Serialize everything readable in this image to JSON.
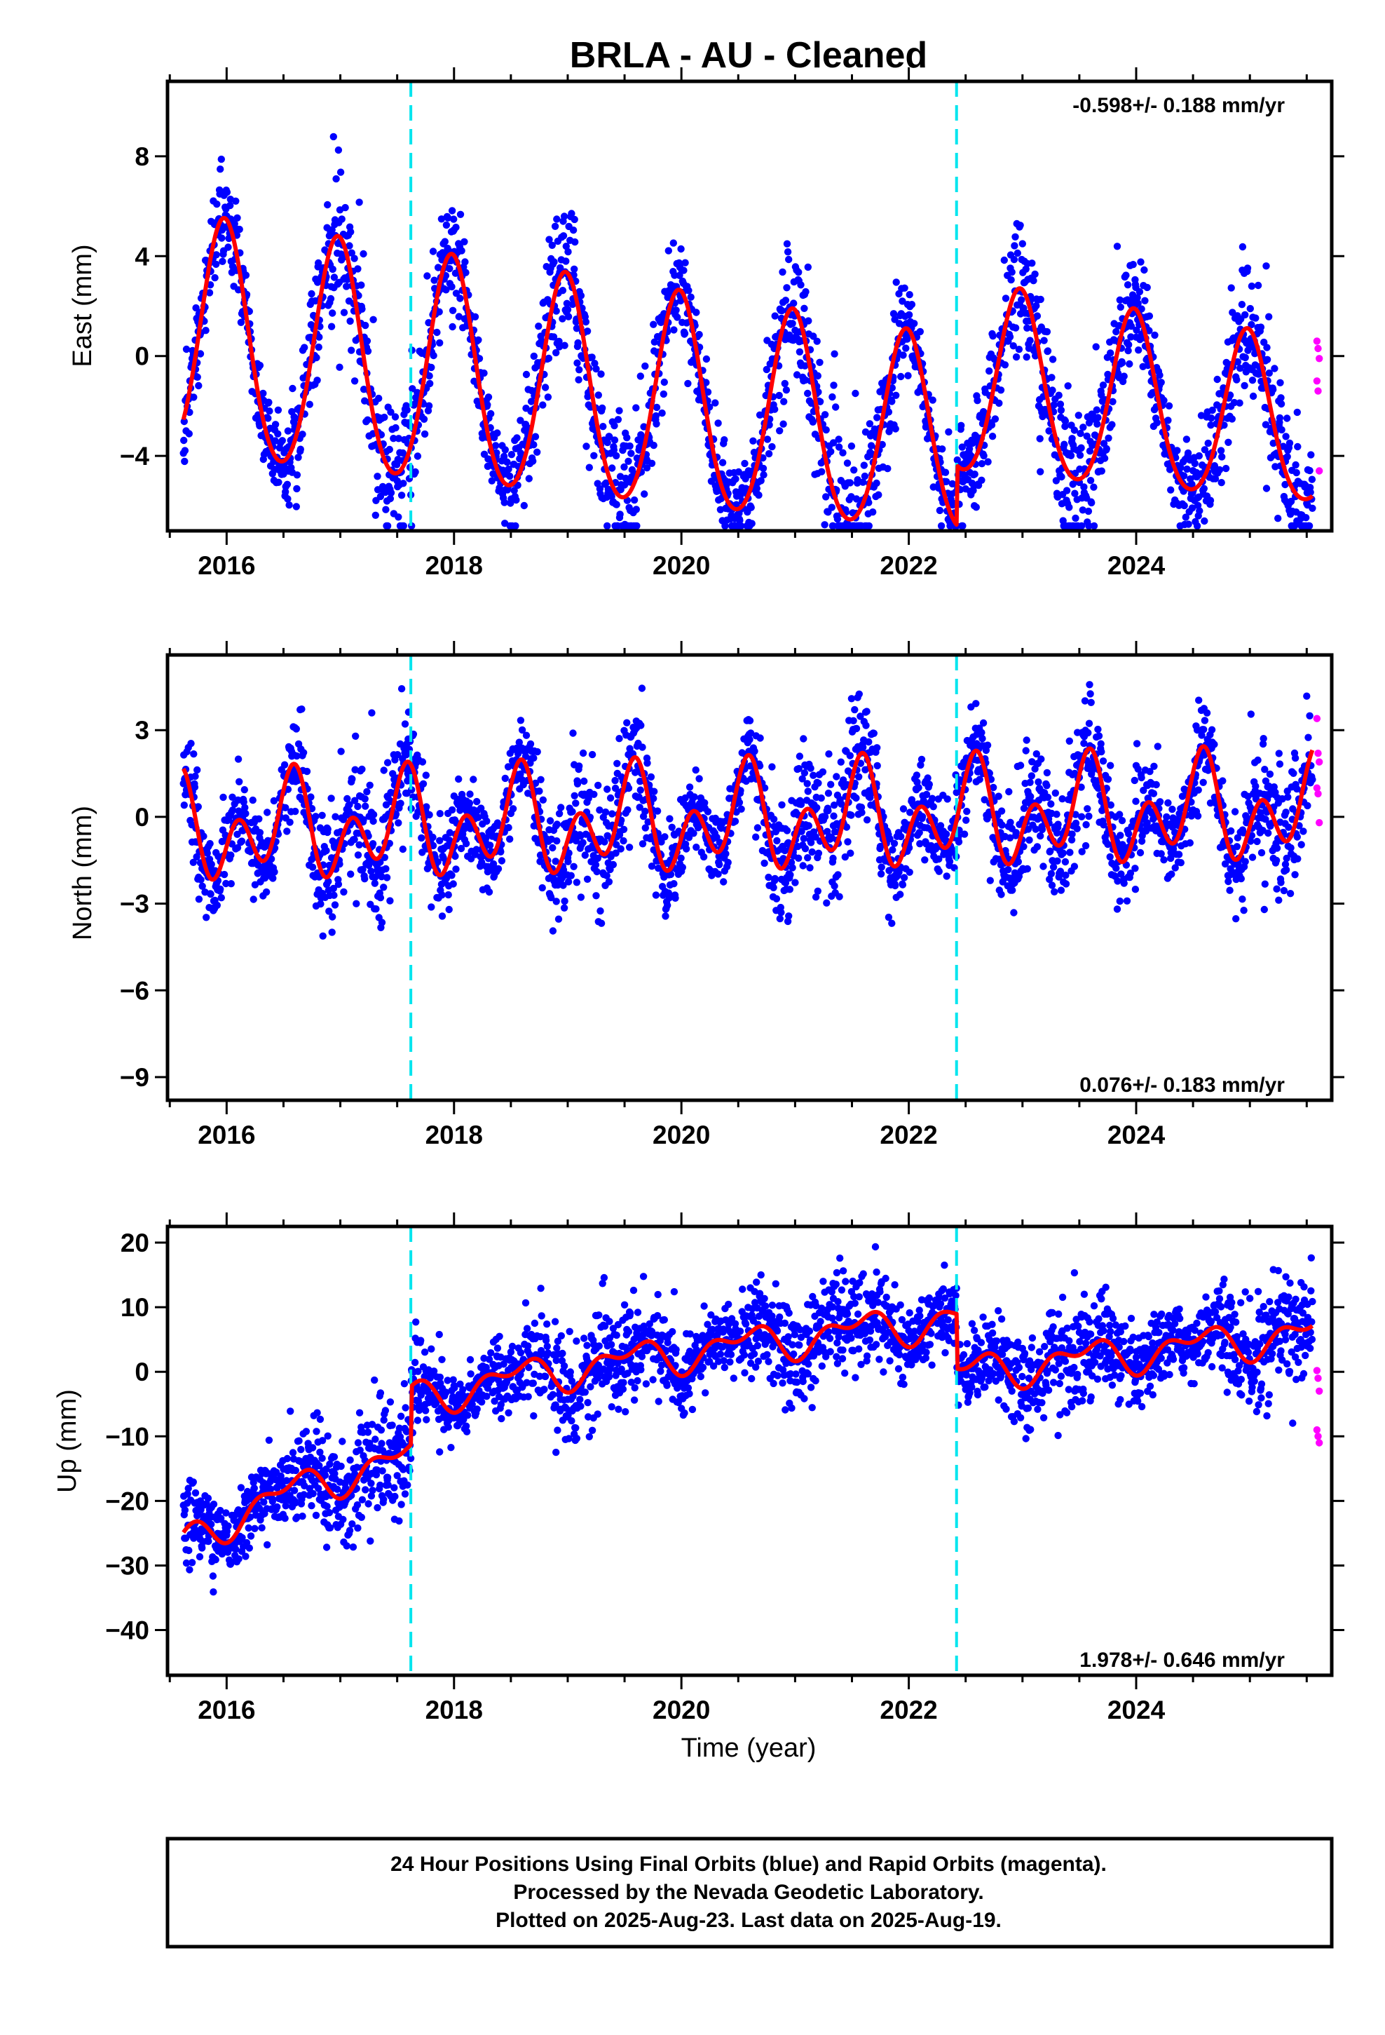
{
  "title": "BRLA  - AU - Cleaned",
  "footer": {
    "lines": [
      "24 Hour Positions Using Final Orbits (blue) and Rapid Orbits (magenta).",
      "Processed by the Nevada Geodetic Laboratory.",
      "Plotted on 2025-Aug-23. Last data on 2025-Aug-19."
    ]
  },
  "colors": {
    "final_orbits": "#0000ff",
    "rapid_orbits": "#ff00ff",
    "model_fit": "#ff0000",
    "equipment_change": "#00e5ee"
  },
  "chart_data": [
    {
      "type": "scatter",
      "panel": "east",
      "ylabel": "East (mm)",
      "xlabel": "",
      "rate_label": "-0.598+/- 0.188 mm/yr",
      "xlim": [
        2015.48,
        2025.72
      ],
      "ylim": [
        -7.0,
        11.0
      ],
      "x_ticks": [
        2016,
        2018,
        2020,
        2022,
        2024
      ],
      "y_ticks": [
        -4,
        0,
        4,
        8
      ],
      "equipment_changes": [
        2017.62,
        2022.42
      ],
      "model": {
        "offset": 0.6,
        "rate": -0.598,
        "annual_amplitude": [
          4.8,
          4.2,
          3.2
        ],
        "annual_peak": 2015.98,
        "semiannual_amplitude": 0.4,
        "semiannual_phase": 0.0,
        "steps": [
          {
            "at": 2022.42,
            "size": 2.4
          }
        ]
      },
      "scatter_sigma": 1.3,
      "rapid_values": [
        0.6,
        0.3,
        -0.1,
        -1.0,
        -1.4,
        -4.6
      ]
    },
    {
      "type": "scatter",
      "panel": "north",
      "ylabel": "North (mm)",
      "xlabel": "",
      "rate_label": "0.076+/- 0.183 mm/yr",
      "xlim": [
        2015.48,
        2025.72
      ],
      "ylim": [
        -9.8,
        5.6
      ],
      "x_ticks": [
        2016,
        2018,
        2020,
        2022,
        2024
      ],
      "y_ticks": [
        -9,
        -6,
        -3,
        0,
        3
      ],
      "equipment_changes": [
        2017.62,
        2022.42
      ],
      "model": {
        "offset": -0.5,
        "rate": 0.076,
        "annual_amplitude": [
          1.0,
          1.0,
          1.0
        ],
        "annual_peak": 2015.55,
        "semiannual_amplitude": 1.3,
        "semiannual_phase": 0.05,
        "steps": []
      },
      "scatter_sigma": 1.0,
      "rapid_values": [
        3.4,
        2.2,
        1.9,
        1.0,
        0.8,
        -0.2
      ]
    },
    {
      "type": "scatter",
      "panel": "up",
      "ylabel": "Up (mm)",
      "xlabel": "Time (year)",
      "rate_label": "1.978+/- 0.646 mm/yr",
      "xlim": [
        2015.48,
        2025.72
      ],
      "ylim": [
        -47.0,
        22.5
      ],
      "x_ticks": [
        2016,
        2018,
        2020,
        2022,
        2024
      ],
      "y_ticks": [
        -40,
        -30,
        -20,
        -10,
        0,
        10,
        20
      ],
      "equipment_changes": [
        2017.62,
        2022.42
      ],
      "model": {
        "offset": -17.0,
        "rate": 1.978,
        "annual_amplitude": [
          2.2,
          2.2,
          2.2
        ],
        "annual_peak": 2016.55,
        "semiannual_amplitude": 1.5,
        "semiannual_phase": 0.2,
        "steps": [
          {
            "at": 2017.62,
            "size": 9.0
          },
          {
            "at": 2022.42,
            "size": -8.5
          }
        ]
      },
      "scatter_sigma": 3.8,
      "rapid_values": [
        0.2,
        -1.0,
        -3.0,
        -9.0,
        -10.0,
        -11.0
      ]
    }
  ]
}
